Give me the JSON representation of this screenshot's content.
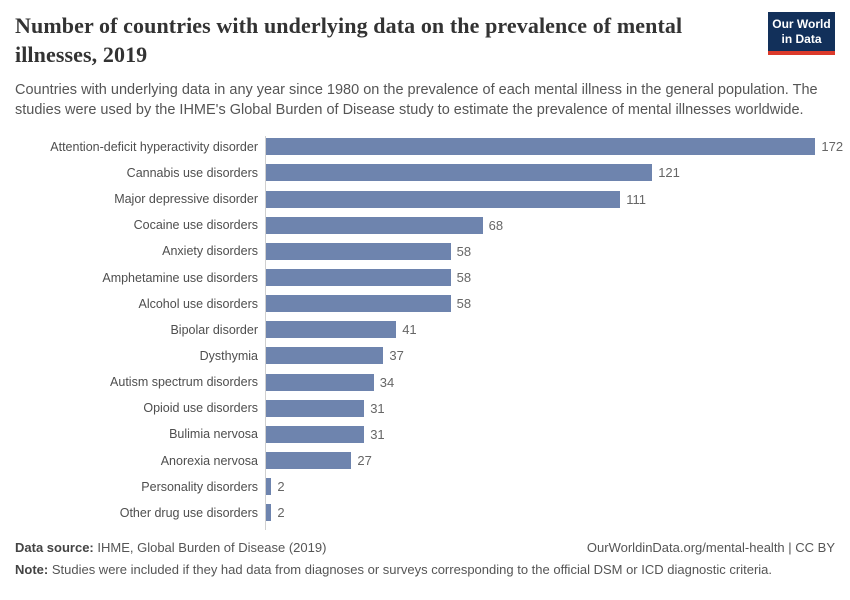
{
  "header": {
    "title": "Number of countries with underlying data on the prevalence of mental illnesses, 2019",
    "subtitle": "Countries with underlying data in any year since 1980 on the prevalence of each mental illness in the general population. The studies were used by the IHME's Global Burden of Disease study to estimate the prevalence of mental illnesses worldwide.",
    "logo": {
      "line1": "Our World",
      "line2": "in Data",
      "bg_color": "#12305a",
      "accent_color": "#dc3a2b"
    }
  },
  "chart_data": {
    "type": "bar",
    "orientation": "horizontal",
    "title": "Number of countries with underlying data on the prevalence of mental illnesses, 2019",
    "categories": [
      "Attention-deficit hyperactivity disorder",
      "Cannabis use disorders",
      "Major depressive disorder",
      "Cocaine use disorders",
      "Anxiety disorders",
      "Amphetamine use disorders",
      "Alcohol use disorders",
      "Bipolar disorder",
      "Dysthymia",
      "Autism spectrum disorders",
      "Opioid use disorders",
      "Bulimia nervosa",
      "Anorexia nervosa",
      "Personality disorders",
      "Other drug use disorders"
    ],
    "values": [
      172,
      121,
      111,
      68,
      58,
      58,
      58,
      41,
      37,
      34,
      31,
      31,
      27,
      2,
      2
    ],
    "xlabel": "",
    "ylabel": "",
    "xlim": [
      0,
      180
    ],
    "grid": false,
    "legend": "none",
    "value_labels_shown": true,
    "bar_color": "#6e84ae",
    "value_label_color": "#666666",
    "axis_line_color": "#d0d0d0"
  },
  "footer": {
    "data_source_label": "Data source:",
    "data_source_text": " IHME, Global Burden of Disease (2019)",
    "credit": "OurWorldinData.org/mental-health | CC BY",
    "note_label": "Note:",
    "note_text": " Studies were included if they had data from diagnoses or surveys corresponding to the official DSM or ICD diagnostic criteria."
  }
}
